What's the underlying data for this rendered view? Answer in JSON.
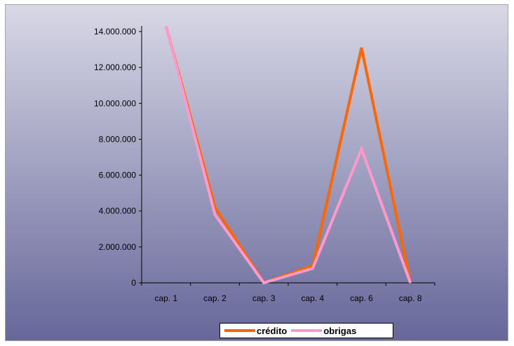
{
  "chart_data": {
    "type": "line",
    "categories": [
      "cap. 1",
      "cap. 2",
      "cap. 3",
      "cap. 4",
      "cap. 6",
      "cap. 8"
    ],
    "series": [
      {
        "name": "crédito",
        "color": "#ff6600",
        "values": [
          14300000,
          4200000,
          0,
          950000,
          13100000,
          0
        ]
      },
      {
        "name": "obrigas",
        "color": "#ff99cc",
        "values": [
          14300000,
          3800000,
          0,
          800000,
          7450000,
          0
        ]
      }
    ],
    "yticks": [
      "0",
      "2.000.000",
      "4.000.000",
      "6.000.000",
      "8.000.000",
      "10.000.000",
      "12.000.000",
      "14.000.000"
    ],
    "ylim": [
      0,
      14000000
    ],
    "legend_position": "bottom",
    "background": {
      "top": "#d8d8e6",
      "bottom": "#66669a"
    }
  }
}
